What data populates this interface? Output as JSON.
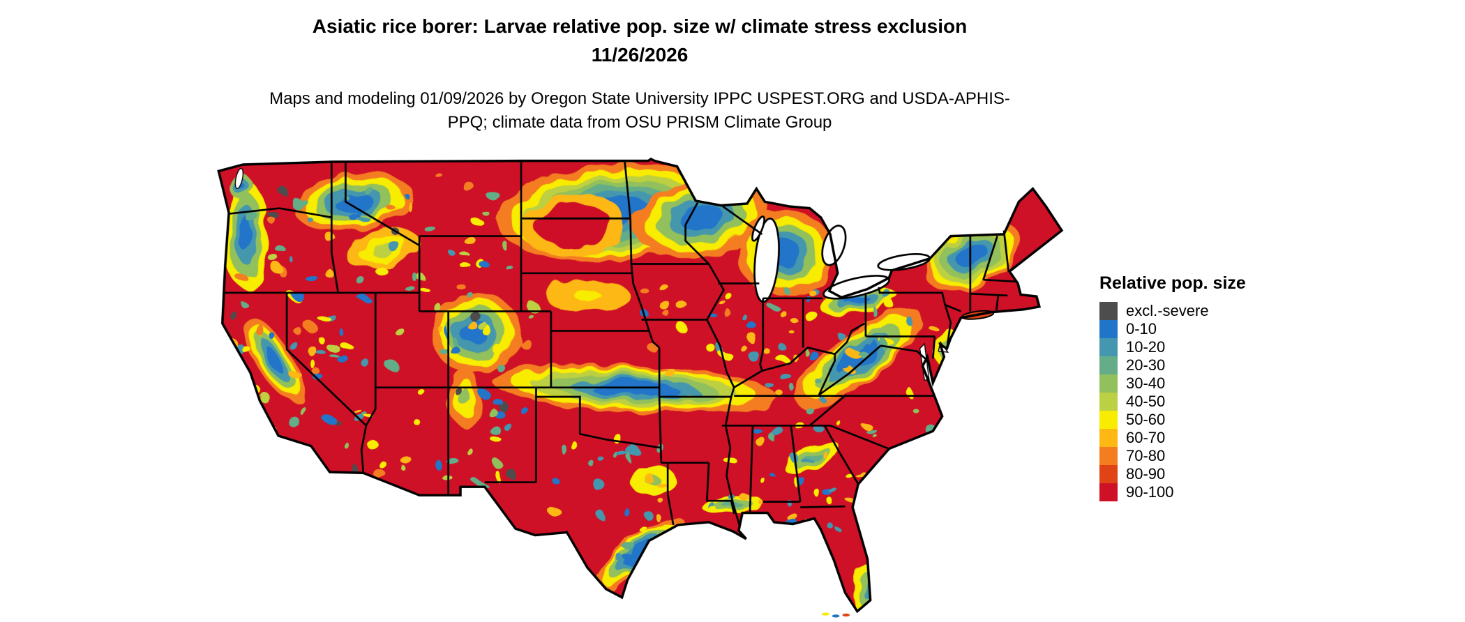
{
  "header": {
    "title": "Asiatic rice borer: Larvae relative pop. size w/ climate stress exclusion 11/26/2026",
    "subtitle": "Maps and modeling 01/09/2026 by Oregon State University IPPC USPEST.ORG and USDA-APHIS-PPQ; climate data from OSU PRISM Climate Group"
  },
  "map": {
    "region": "Continental United States",
    "border_color": "#000000",
    "water_color": "#ffffff"
  },
  "legend": {
    "title": "Relative pop. size",
    "items": [
      {
        "label": "excl.-severe",
        "color": "#4d4d4d"
      },
      {
        "label": "0-10",
        "color": "#2175c8"
      },
      {
        "label": "10-20",
        "color": "#4497ae"
      },
      {
        "label": "20-30",
        "color": "#64ad88"
      },
      {
        "label": "30-40",
        "color": "#92c05c"
      },
      {
        "label": "40-50",
        "color": "#bcd043"
      },
      {
        "label": "50-60",
        "color": "#f8ec00"
      },
      {
        "label": "60-70",
        "color": "#fdb813"
      },
      {
        "label": "70-80",
        "color": "#f47d20"
      },
      {
        "label": "80-90",
        "color": "#e04416"
      },
      {
        "label": "90-100",
        "color": "#ce1126"
      }
    ]
  }
}
